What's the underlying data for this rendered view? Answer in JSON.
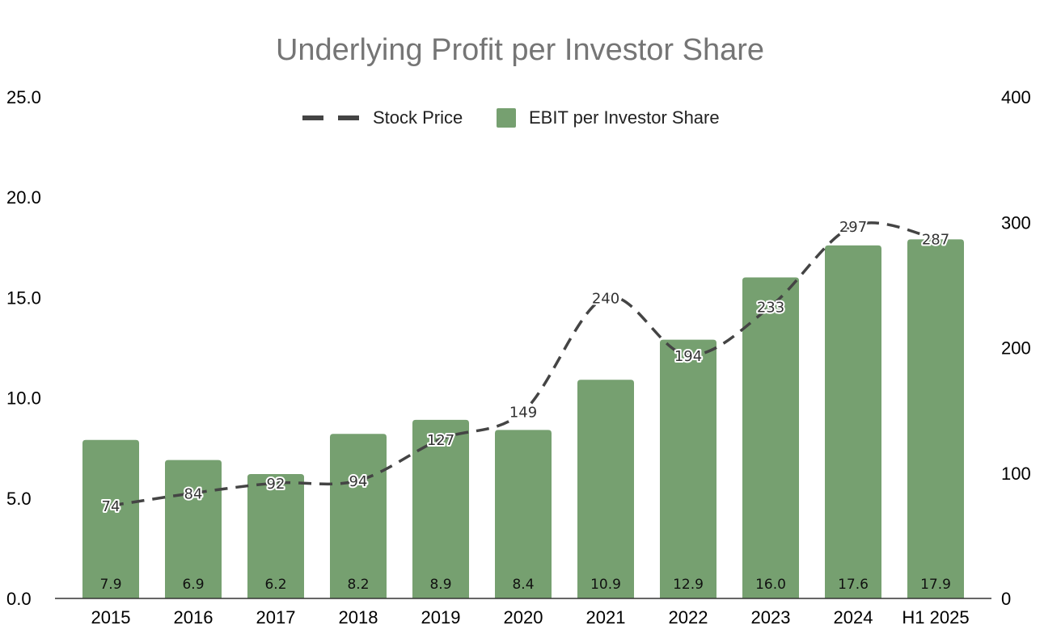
{
  "chart_data": {
    "type": "bar",
    "title": "Underlying Profit per Investor Share",
    "categories": [
      "2015",
      "2016",
      "2017",
      "2018",
      "2019",
      "2020",
      "2021",
      "2022",
      "2023",
      "2024",
      "H1 2025"
    ],
    "series": [
      {
        "name": "EBIT per Investor Share",
        "type": "bar",
        "axis": "left",
        "color": "#76A070",
        "values": [
          7.9,
          6.9,
          6.2,
          8.2,
          8.9,
          8.4,
          10.9,
          12.9,
          16.0,
          17.6,
          17.9
        ],
        "labels": [
          "7.9",
          "6.9",
          "6.2",
          "8.2",
          "8.9",
          "8.4",
          "10.9",
          "12.9",
          "16.0",
          "17.6",
          "17.9"
        ]
      },
      {
        "name": "Stock Price",
        "type": "line",
        "style": "dashed",
        "smooth": true,
        "axis": "right",
        "color": "#444444",
        "values": [
          74,
          84,
          92,
          94,
          127,
          149,
          240,
          194,
          233,
          297,
          287
        ],
        "labels": [
          "74",
          "84",
          "92",
          "94",
          "127",
          "149",
          "240",
          "194",
          "233",
          "297",
          "287"
        ]
      }
    ],
    "y_left": {
      "range": [
        0,
        25
      ],
      "ticks": [
        "0.0",
        "5.0",
        "10.0",
        "15.0",
        "20.0",
        "25.0"
      ]
    },
    "y_right": {
      "range": [
        0,
        400
      ],
      "ticks": [
        "0",
        "100",
        "200",
        "300",
        "400"
      ]
    },
    "legend": {
      "position": "top-center"
    },
    "grid": false
  }
}
